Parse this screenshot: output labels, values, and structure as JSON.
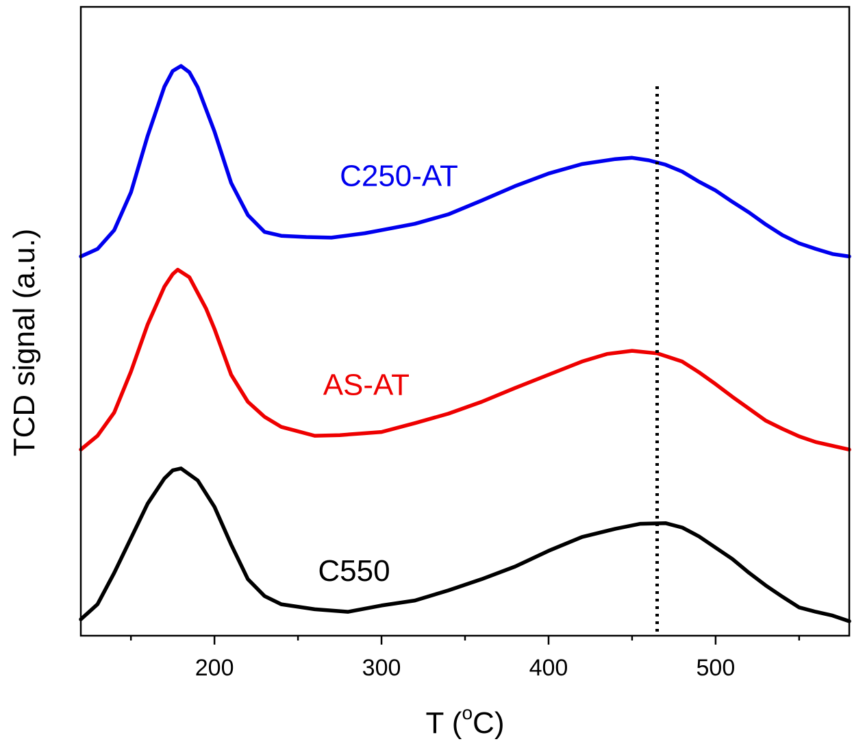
{
  "chart_data": {
    "type": "line",
    "title": "",
    "xlabel": "T (oC)",
    "xlabel_parts": {
      "prefix": "T (",
      "superscript": "o",
      "suffix": "C)"
    },
    "ylabel": "TCD signal (a.u.)",
    "xlim": [
      120,
      580
    ],
    "ylim": [
      0,
      100
    ],
    "x_major_ticks": [
      200,
      300,
      400,
      500
    ],
    "x_tick_labels": [
      "200",
      "300",
      "400",
      "500"
    ],
    "x_minor_ticks": [
      150,
      250,
      350,
      450,
      550
    ],
    "y_tick_labels": false,
    "grid": false,
    "legend": "none (series labelled directly on curves)",
    "vertical_reference_line": {
      "x": 465,
      "style": "dotted",
      "color": "#000000"
    },
    "series": [
      {
        "name": "C250-AT",
        "color": "#0000ee",
        "label_anchor": {
          "x": 275,
          "y": 71.5
        },
        "points": [
          [
            120,
            60.3
          ],
          [
            130,
            61.5
          ],
          [
            140,
            64.5
          ],
          [
            150,
            70.5
          ],
          [
            160,
            79.5
          ],
          [
            170,
            87.3
          ],
          [
            175,
            89.8
          ],
          [
            180,
            90.6
          ],
          [
            185,
            89.6
          ],
          [
            190,
            87.2
          ],
          [
            200,
            80.2
          ],
          [
            210,
            72.0
          ],
          [
            220,
            66.9
          ],
          [
            230,
            64.2
          ],
          [
            240,
            63.6
          ],
          [
            255,
            63.4
          ],
          [
            270,
            63.3
          ],
          [
            290,
            64.0
          ],
          [
            300,
            64.5
          ],
          [
            320,
            65.5
          ],
          [
            340,
            67.0
          ],
          [
            360,
            69.2
          ],
          [
            380,
            71.5
          ],
          [
            400,
            73.5
          ],
          [
            420,
            75.0
          ],
          [
            440,
            75.8
          ],
          [
            450,
            76.0
          ],
          [
            460,
            75.6
          ],
          [
            470,
            74.9
          ],
          [
            480,
            73.8
          ],
          [
            490,
            72.2
          ],
          [
            500,
            70.8
          ],
          [
            510,
            69.0
          ],
          [
            520,
            67.3
          ],
          [
            530,
            65.4
          ],
          [
            540,
            63.7
          ],
          [
            550,
            62.4
          ],
          [
            560,
            61.5
          ],
          [
            570,
            60.7
          ],
          [
            580,
            60.3
          ]
        ]
      },
      {
        "name": "AS-AT",
        "color": "#ee0000",
        "label_anchor": {
          "x": 265,
          "y": 38.3
        },
        "points": [
          [
            120,
            29.6
          ],
          [
            130,
            31.8
          ],
          [
            140,
            35.5
          ],
          [
            150,
            42.0
          ],
          [
            160,
            49.5
          ],
          [
            170,
            55.5
          ],
          [
            175,
            57.5
          ],
          [
            178,
            58.2
          ],
          [
            185,
            57.0
          ],
          [
            195,
            52.0
          ],
          [
            200,
            48.8
          ],
          [
            210,
            41.5
          ],
          [
            220,
            37.2
          ],
          [
            230,
            34.8
          ],
          [
            240,
            33.2
          ],
          [
            260,
            31.8
          ],
          [
            275,
            31.9
          ],
          [
            300,
            32.4
          ],
          [
            320,
            33.8
          ],
          [
            340,
            35.3
          ],
          [
            360,
            37.2
          ],
          [
            380,
            39.4
          ],
          [
            400,
            41.5
          ],
          [
            420,
            43.6
          ],
          [
            435,
            44.8
          ],
          [
            450,
            45.3
          ],
          [
            465,
            44.9
          ],
          [
            480,
            43.6
          ],
          [
            490,
            41.9
          ],
          [
            500,
            40.0
          ],
          [
            510,
            38.0
          ],
          [
            520,
            36.1
          ],
          [
            530,
            34.2
          ],
          [
            540,
            32.9
          ],
          [
            550,
            31.7
          ],
          [
            560,
            30.8
          ],
          [
            570,
            30.2
          ],
          [
            580,
            29.6
          ]
        ]
      },
      {
        "name": "C550",
        "color": "#000000",
        "label_anchor": {
          "x": 262,
          "y": 8.7
        },
        "points": [
          [
            120,
            2.6
          ],
          [
            130,
            5.0
          ],
          [
            140,
            10.0
          ],
          [
            150,
            15.5
          ],
          [
            160,
            21.0
          ],
          [
            170,
            25.0
          ],
          [
            175,
            26.3
          ],
          [
            180,
            26.6
          ],
          [
            190,
            24.7
          ],
          [
            200,
            20.5
          ],
          [
            210,
            14.5
          ],
          [
            220,
            9.0
          ],
          [
            230,
            6.3
          ],
          [
            240,
            5.0
          ],
          [
            260,
            4.2
          ],
          [
            280,
            3.8
          ],
          [
            300,
            4.8
          ],
          [
            320,
            5.6
          ],
          [
            340,
            7.2
          ],
          [
            360,
            9.0
          ],
          [
            380,
            11.0
          ],
          [
            400,
            13.5
          ],
          [
            420,
            15.7
          ],
          [
            440,
            17.0
          ],
          [
            455,
            17.8
          ],
          [
            470,
            17.9
          ],
          [
            480,
            17.2
          ],
          [
            490,
            15.8
          ],
          [
            500,
            14.0
          ],
          [
            510,
            12.2
          ],
          [
            520,
            10.0
          ],
          [
            530,
            8.0
          ],
          [
            540,
            6.2
          ],
          [
            550,
            4.5
          ],
          [
            560,
            3.8
          ],
          [
            570,
            3.2
          ],
          [
            580,
            2.3
          ]
        ]
      }
    ]
  }
}
